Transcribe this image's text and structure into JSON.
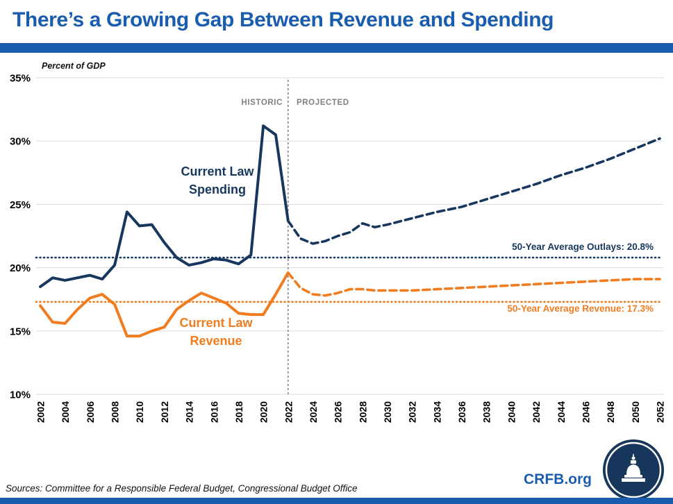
{
  "header": {
    "title": "There’s a Growing Gap Between Revenue and Spending",
    "accent_color": "#1A5CAD"
  },
  "chart_data": {
    "type": "line",
    "title": "There’s a Growing Gap Between Revenue and Spending",
    "xlabel": "",
    "ylabel": "Percent of GDP",
    "ylim": [
      10,
      35
    ],
    "xlim": [
      2002,
      2052
    ],
    "y_tick_step": 5,
    "x_tick_step": 2,
    "grid": true,
    "grid_color": "#D9D9D9",
    "x": [
      2002,
      2003,
      2004,
      2005,
      2006,
      2007,
      2008,
      2009,
      2010,
      2011,
      2012,
      2013,
      2014,
      2015,
      2016,
      2017,
      2018,
      2019,
      2020,
      2021,
      2022,
      2023,
      2024,
      2025,
      2026,
      2027,
      2028,
      2029,
      2030,
      2031,
      2032,
      2033,
      2034,
      2035,
      2036,
      2037,
      2038,
      2039,
      2040,
      2041,
      2042,
      2043,
      2044,
      2045,
      2046,
      2047,
      2048,
      2049,
      2050,
      2051,
      2052
    ],
    "series": [
      {
        "name": "Current Law Spending",
        "color": "#17375E",
        "split_year": 2022,
        "style_historic": "solid",
        "style_projected": "dashed",
        "values": [
          18.5,
          19.2,
          19.0,
          19.2,
          19.4,
          19.1,
          20.2,
          24.4,
          23.3,
          23.4,
          22.0,
          20.8,
          20.2,
          20.4,
          20.7,
          20.6,
          20.3,
          21.0,
          31.2,
          30.5,
          23.7,
          22.3,
          21.9,
          22.1,
          22.5,
          22.8,
          23.5,
          23.2,
          23.4,
          23.65,
          23.9,
          24.15,
          24.4,
          24.6,
          24.8,
          25.1,
          25.4,
          25.7,
          26.0,
          26.3,
          26.6,
          26.95,
          27.3,
          27.6,
          27.9,
          28.25,
          28.6,
          29.0,
          29.4,
          29.8,
          30.2
        ]
      },
      {
        "name": "Current Law Revenue",
        "color": "#F07C1F",
        "split_year": 2022,
        "style_historic": "solid",
        "style_projected": "dashed",
        "values": [
          17.0,
          15.7,
          15.6,
          16.7,
          17.6,
          17.9,
          17.1,
          14.6,
          14.6,
          15.0,
          15.3,
          16.7,
          17.4,
          18.0,
          17.6,
          17.2,
          16.4,
          16.3,
          16.3,
          17.9,
          19.6,
          18.4,
          17.9,
          17.8,
          18.0,
          18.3,
          18.3,
          18.2,
          18.2,
          18.2,
          18.2,
          18.25,
          18.3,
          18.35,
          18.4,
          18.45,
          18.5,
          18.55,
          18.6,
          18.65,
          18.7,
          18.75,
          18.8,
          18.85,
          18.9,
          18.95,
          19.0,
          19.05,
          19.1,
          19.1,
          19.1
        ]
      }
    ],
    "reference_lines": [
      {
        "label": "50-Year Average Outlays: 20.8%",
        "value": 20.8,
        "color": "#17375E"
      },
      {
        "label": "50-Year Average Revenue: 17.3%",
        "value": 17.3,
        "color": "#F07C1F"
      }
    ],
    "separator": {
      "year": 2022,
      "left_label": "HISTORIC",
      "right_label": "PROJECTED",
      "color": "#808080"
    }
  },
  "footer": {
    "sources": "Sources: Committee for a Responsible Federal Budget, Congressional Budget Office",
    "site": "CRFB.org"
  },
  "icons": {
    "logo": "capitol-dome-icon"
  }
}
